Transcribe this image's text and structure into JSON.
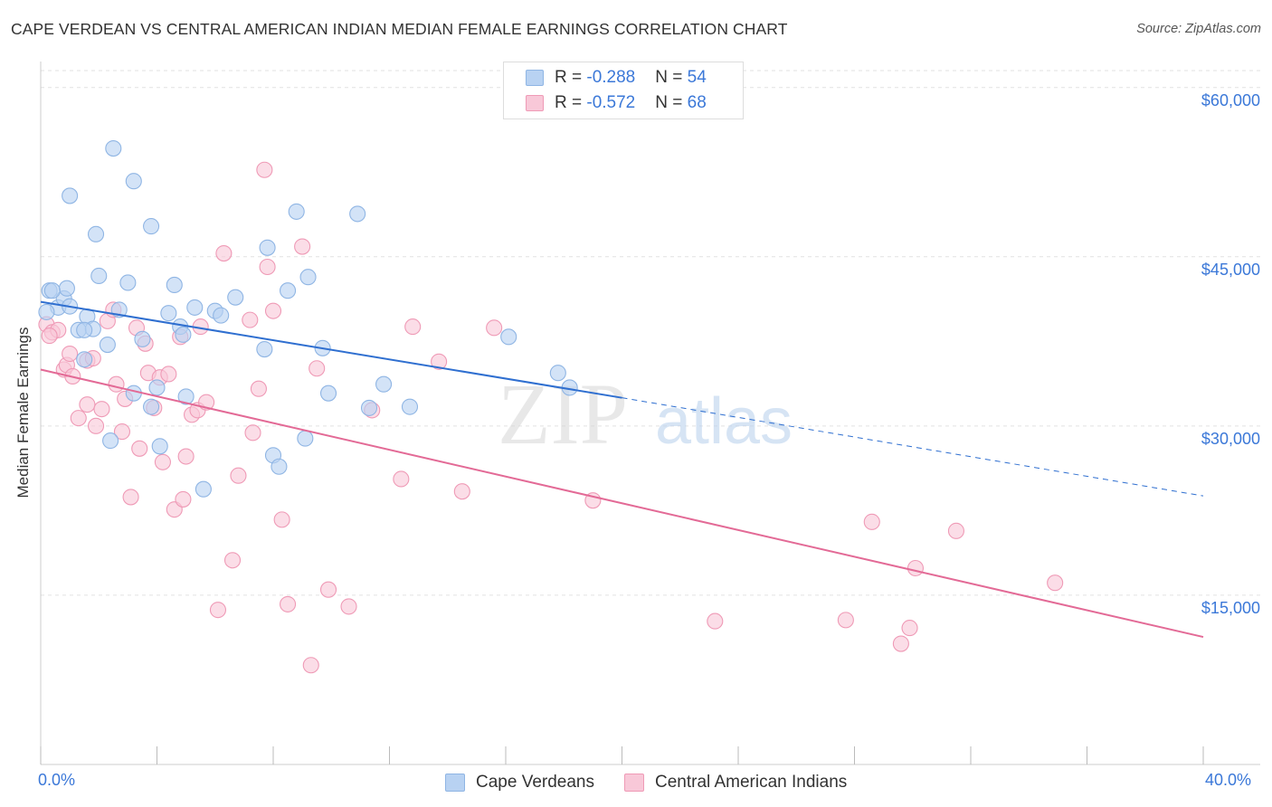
{
  "title": "CAPE VERDEAN VS CENTRAL AMERICAN INDIAN MEDIAN FEMALE EARNINGS CORRELATION CHART",
  "source": "Source: ZipAtlas.com",
  "watermark": {
    "zip": "ZIP",
    "atlas": "atlas"
  },
  "legend": {
    "r_label": "R = ",
    "n_label": "N = ",
    "rows": [
      {
        "r": "-0.288",
        "n": "54"
      },
      {
        "r": "-0.572",
        "n": "68"
      }
    ]
  },
  "colors": {
    "blue_fill": "#b8d2f2",
    "blue_stroke": "#8fb5e4",
    "blue_line": "#2f6fd0",
    "pink_fill": "#f8c8d8",
    "pink_stroke": "#ef9ab6",
    "pink_line": "#e36a96",
    "axis_text": "#3b78d8",
    "grid": "#e2e2e2"
  },
  "chart_data": {
    "type": "scatter",
    "title": "CAPE VERDEAN VS CENTRAL AMERICAN INDIAN MEDIAN FEMALE EARNINGS CORRELATION CHART",
    "xlabel": "",
    "ylabel": "Median Female Earnings",
    "x_tick_labels": [
      "0.0%",
      "40.0%"
    ],
    "y_tick_labels": [
      "$15,000",
      "$30,000",
      "$45,000",
      "$60,000"
    ],
    "y_ticks": [
      15000,
      30000,
      45000,
      60000
    ],
    "xlim": [
      0,
      40
    ],
    "ylim": [
      0,
      61500
    ],
    "grid": true,
    "legend_position": "bottom",
    "series": [
      {
        "name": "Cape Verdeans",
        "r": -0.288,
        "n": 54,
        "trend": {
          "x": [
            0,
            20
          ],
          "y": [
            41000,
            32500
          ],
          "dashed_to": [
            40,
            23800
          ]
        },
        "points": [
          [
            0.3,
            42000
          ],
          [
            0.6,
            40500
          ],
          [
            0.8,
            41300
          ],
          [
            0.2,
            40100
          ],
          [
            0.9,
            42200
          ],
          [
            1.0,
            40600
          ],
          [
            1.3,
            38500
          ],
          [
            1.6,
            39700
          ],
          [
            1.8,
            38600
          ],
          [
            1.5,
            35900
          ],
          [
            1.0,
            50400
          ],
          [
            1.9,
            47000
          ],
          [
            2.0,
            43300
          ],
          [
            2.5,
            54600
          ],
          [
            2.3,
            37200
          ],
          [
            2.7,
            40300
          ],
          [
            3.0,
            42700
          ],
          [
            3.2,
            51700
          ],
          [
            3.5,
            37700
          ],
          [
            3.8,
            47700
          ],
          [
            4.0,
            33400
          ],
          [
            3.2,
            32900
          ],
          [
            3.8,
            31700
          ],
          [
            4.1,
            28200
          ],
          [
            2.4,
            28700
          ],
          [
            4.4,
            40000
          ],
          [
            4.6,
            42500
          ],
          [
            4.8,
            38800
          ],
          [
            4.9,
            38100
          ],
          [
            5.0,
            32600
          ],
          [
            5.3,
            40500
          ],
          [
            5.6,
            24400
          ],
          [
            6.0,
            40200
          ],
          [
            6.2,
            39800
          ],
          [
            6.7,
            41400
          ],
          [
            7.7,
            36800
          ],
          [
            7.8,
            45800
          ],
          [
            8.0,
            27400
          ],
          [
            8.2,
            26400
          ],
          [
            8.5,
            42000
          ],
          [
            8.8,
            49000
          ],
          [
            9.2,
            43200
          ],
          [
            9.1,
            28900
          ],
          [
            9.7,
            36900
          ],
          [
            9.9,
            32900
          ],
          [
            10.9,
            48800
          ],
          [
            11.3,
            31600
          ],
          [
            11.8,
            33700
          ],
          [
            12.7,
            31700
          ],
          [
            16.1,
            37900
          ],
          [
            17.8,
            34700
          ],
          [
            18.2,
            33400
          ],
          [
            0.4,
            42000
          ],
          [
            1.5,
            38500
          ]
        ]
      },
      {
        "name": "Central American Indians",
        "r": -0.572,
        "n": 68,
        "trend": {
          "x": [
            0,
            40
          ],
          "y": [
            35000,
            11300
          ]
        },
        "points": [
          [
            0.2,
            39000
          ],
          [
            0.4,
            38300
          ],
          [
            0.6,
            38500
          ],
          [
            0.3,
            38000
          ],
          [
            0.8,
            35000
          ],
          [
            0.9,
            35400
          ],
          [
            1.0,
            36400
          ],
          [
            1.1,
            34400
          ],
          [
            1.3,
            30700
          ],
          [
            1.6,
            35800
          ],
          [
            1.6,
            31900
          ],
          [
            1.8,
            36000
          ],
          [
            1.9,
            30000
          ],
          [
            2.1,
            31500
          ],
          [
            2.3,
            39300
          ],
          [
            2.5,
            40300
          ],
          [
            2.6,
            33700
          ],
          [
            2.8,
            29500
          ],
          [
            2.9,
            32400
          ],
          [
            3.1,
            23700
          ],
          [
            3.3,
            38700
          ],
          [
            3.4,
            28000
          ],
          [
            3.6,
            37300
          ],
          [
            3.7,
            34700
          ],
          [
            3.9,
            31600
          ],
          [
            4.1,
            34300
          ],
          [
            4.2,
            26800
          ],
          [
            4.4,
            34600
          ],
          [
            4.6,
            22600
          ],
          [
            4.8,
            37900
          ],
          [
            4.9,
            23500
          ],
          [
            5.0,
            27300
          ],
          [
            5.2,
            31000
          ],
          [
            5.4,
            31400
          ],
          [
            5.5,
            38800
          ],
          [
            5.7,
            32100
          ],
          [
            6.1,
            13700
          ],
          [
            6.3,
            45300
          ],
          [
            6.6,
            18100
          ],
          [
            6.8,
            25600
          ],
          [
            7.2,
            39400
          ],
          [
            7.3,
            29400
          ],
          [
            7.5,
            33300
          ],
          [
            7.7,
            52700
          ],
          [
            7.8,
            44100
          ],
          [
            8.0,
            40200
          ],
          [
            8.3,
            21700
          ],
          [
            8.5,
            14200
          ],
          [
            9.0,
            45900
          ],
          [
            9.3,
            8800
          ],
          [
            9.5,
            35100
          ],
          [
            9.9,
            15500
          ],
          [
            10.6,
            14000
          ],
          [
            11.4,
            31400
          ],
          [
            12.4,
            25300
          ],
          [
            12.8,
            38800
          ],
          [
            13.7,
            35700
          ],
          [
            14.5,
            24200
          ],
          [
            15.6,
            38700
          ],
          [
            19.0,
            23400
          ],
          [
            23.2,
            12700
          ],
          [
            27.7,
            12800
          ],
          [
            28.6,
            21500
          ],
          [
            29.6,
            10700
          ],
          [
            29.9,
            12100
          ],
          [
            30.1,
            17400
          ],
          [
            31.5,
            20700
          ],
          [
            34.9,
            16100
          ]
        ]
      }
    ]
  }
}
